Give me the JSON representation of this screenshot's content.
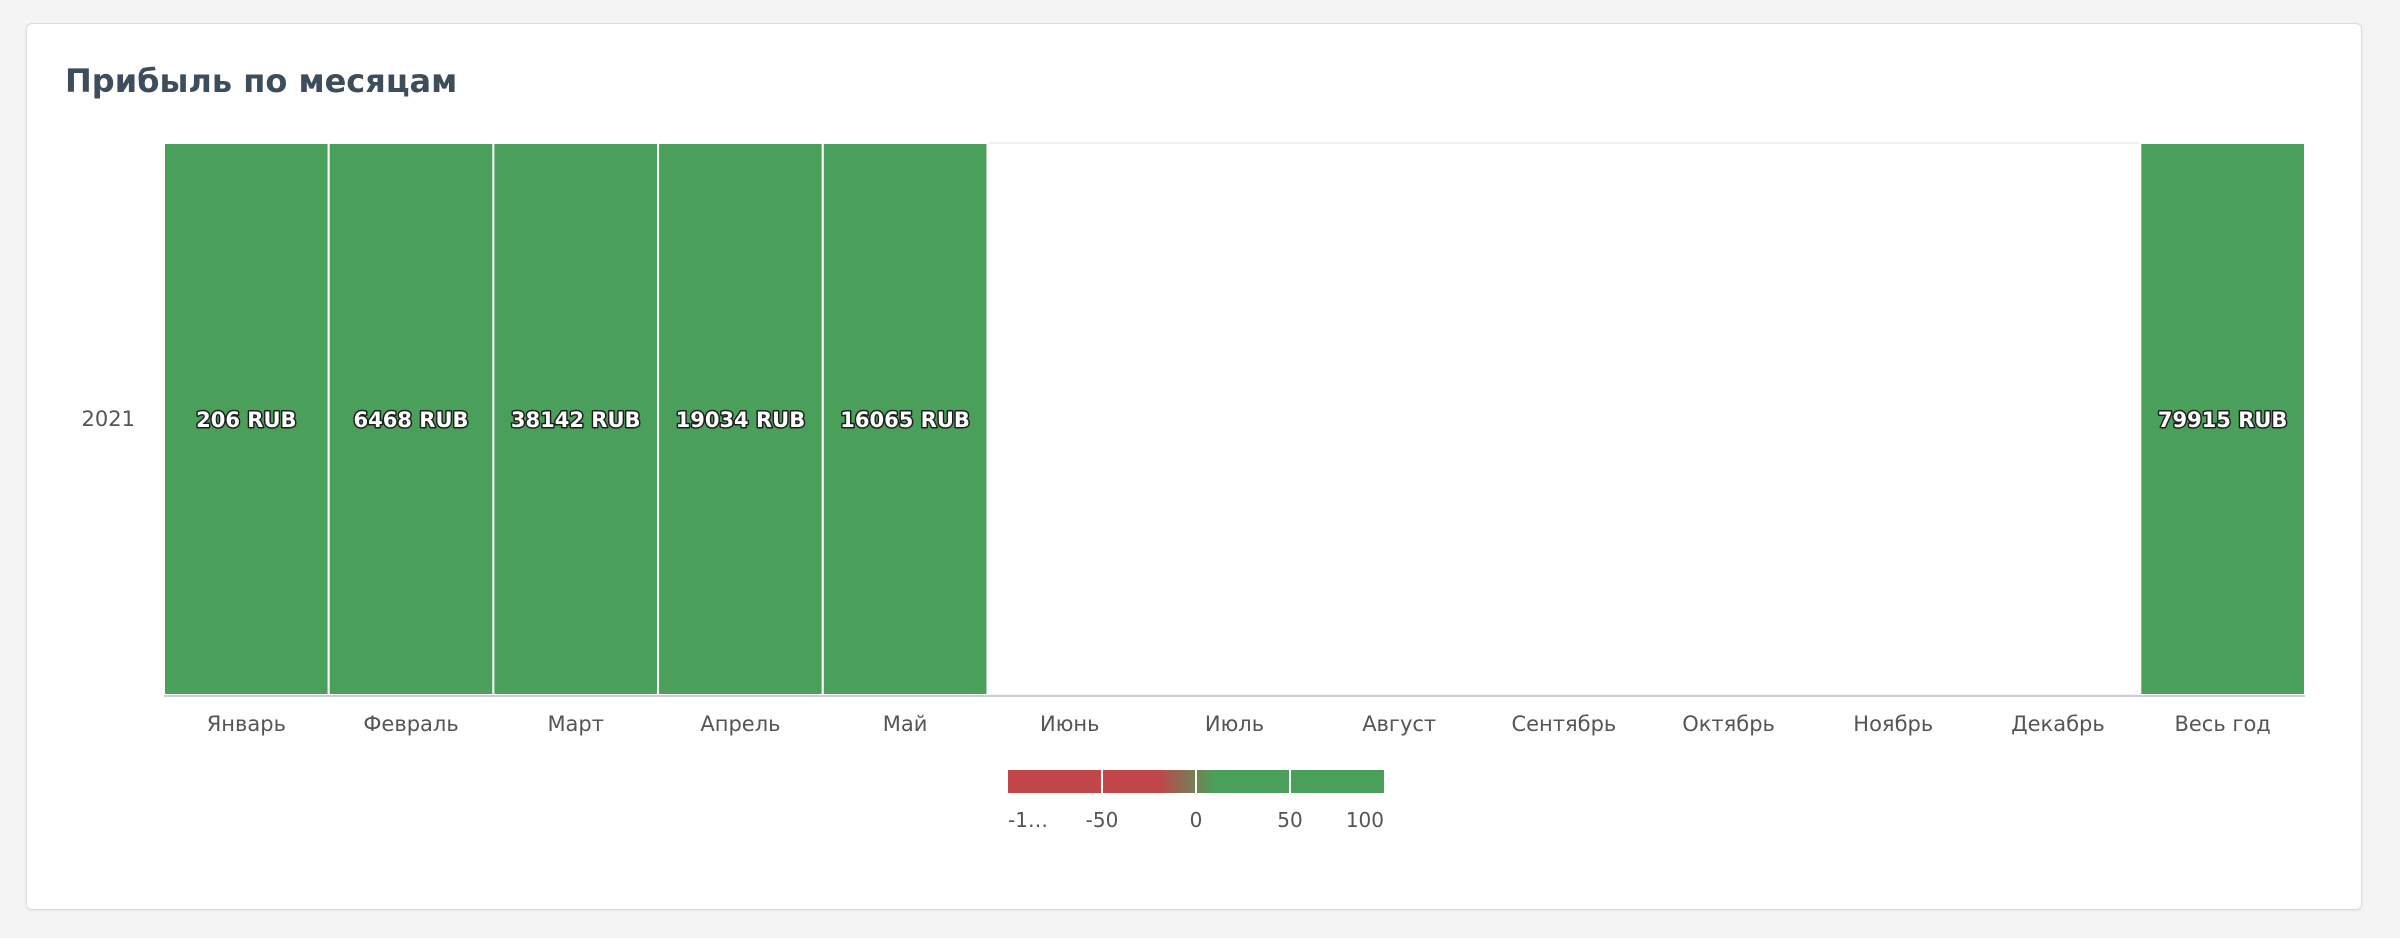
{
  "card": {
    "title": "Прибыль по месяцам"
  },
  "chart_data": {
    "type": "heatmap",
    "title": "Прибыль по месяцам",
    "rows": [
      "2021"
    ],
    "columns": [
      "Январь",
      "Февраль",
      "Март",
      "Апрель",
      "Май",
      "Июнь",
      "Июль",
      "Август",
      "Сентябрь",
      "Октябрь",
      "Ноябрь",
      "Декабрь",
      "Весь год"
    ],
    "values": [
      [
        206,
        6468,
        38142,
        19034,
        16065,
        null,
        null,
        null,
        null,
        null,
        null,
        null,
        79915
      ]
    ],
    "cell_labels": [
      [
        "206 RUB",
        "6468 RUB",
        "38142 RUB",
        "19034 RUB",
        "16065 RUB",
        "",
        "",
        "",
        "",
        "",
        "",
        "",
        "79915 RUB"
      ]
    ],
    "color_scale": {
      "negative_color": "#c0464a",
      "positive_color": "#4aa05a",
      "empty_color": "#ffffff",
      "ticks": [
        "-1…",
        "-50",
        "0",
        "50",
        "100"
      ]
    }
  }
}
